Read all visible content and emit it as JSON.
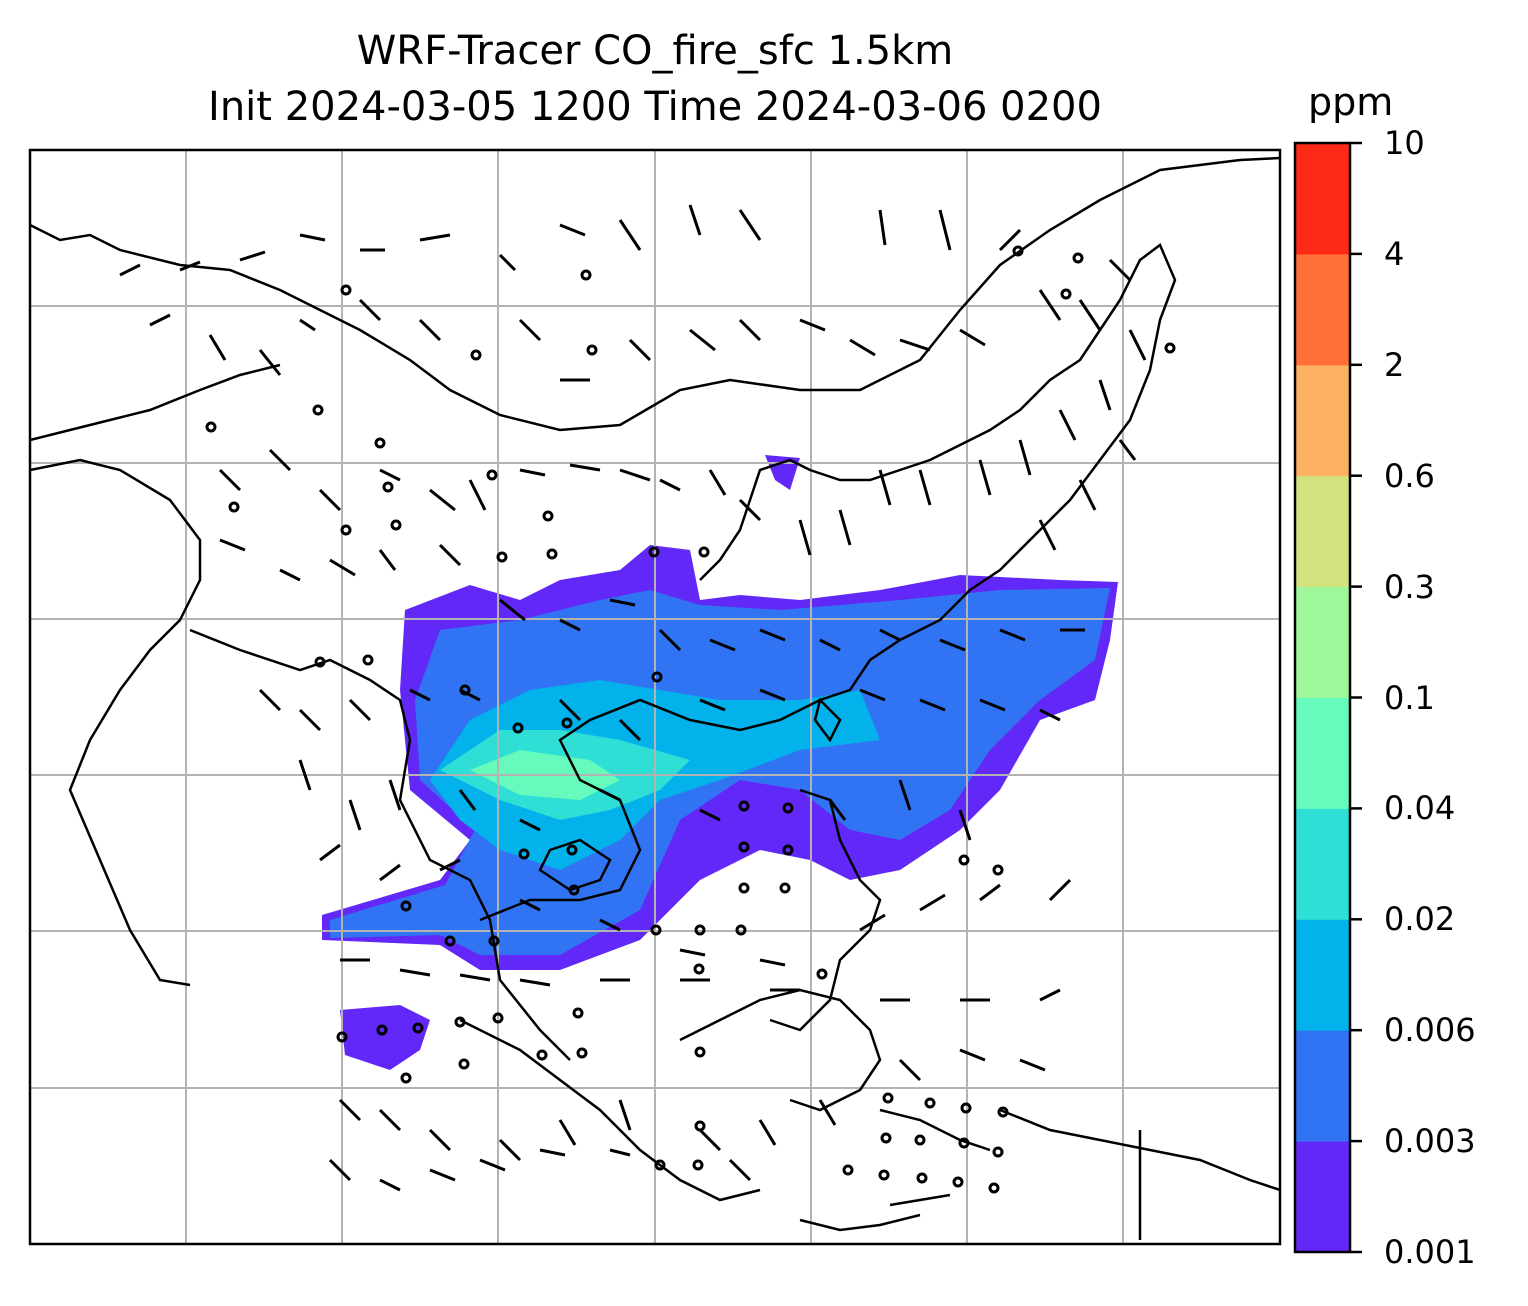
{
  "title_line1": "WRF-Tracer CO_fire_sfc 1.5km",
  "title_line2": "Init 2024-03-05 1200 Time 2024-03-06 0200",
  "colorbar": {
    "unit": "ppm",
    "levels": [
      "0.001",
      "0.003",
      "0.006",
      "0.02",
      "0.04",
      "0.1",
      "0.3",
      "0.6",
      "2",
      "4",
      "10"
    ],
    "colors": [
      "#6228f8",
      "#3174f3",
      "#03b2ea",
      "#2fdfd5",
      "#66fbbc",
      "#9ef79b",
      "#d1e27f",
      "#fdb162",
      "#fe7037",
      "#fc2a16"
    ]
  },
  "map": {
    "gridlines": true,
    "coastline_color": "#000000",
    "grid_color": "#b3b3b3"
  }
}
